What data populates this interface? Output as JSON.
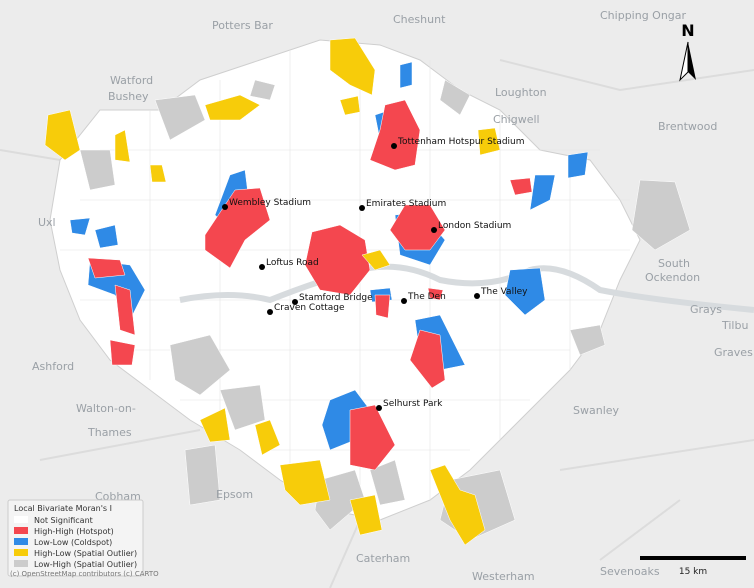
{
  "map": {
    "places": [
      "Potters Bar",
      "Cheshunt",
      "Chipping Ongar",
      "Watford",
      "Bushey",
      "Loughton",
      "Chigwell",
      "Brentwood",
      "Uxl",
      "South",
      "Ockendon",
      "Grays",
      "Tilbu",
      "Graves",
      "Ashford",
      "Walton-on-",
      "Thames",
      "Swanley",
      "Cobham",
      "Epsom",
      "Caterham",
      "Sevenoaks",
      "Westerham"
    ],
    "stadiums": [
      "Tottenham Hotspur Stadium",
      "Wembley Stadium",
      "Emirates Stadium",
      "London Stadium",
      "Loftus Road",
      "Stamford Bridge",
      "Craven Cottage",
      "The Den",
      "The Valley",
      "Selhurst Park"
    ],
    "legend": {
      "title": "Local Bivariate Moran's I",
      "items": [
        {
          "label": "Not Significant",
          "color": "#ffffff"
        },
        {
          "label": "High-High (Hotspot)",
          "color": "#f4474f"
        },
        {
          "label": "Low-Low (Coldspot)",
          "color": "#2f8ae6"
        },
        {
          "label": "High-Low (Spatial Outlier)",
          "color": "#f7cc0a"
        },
        {
          "label": "Low-High (Spatial Outlier)",
          "color": "#cccccc"
        }
      ]
    },
    "north": "N",
    "scale": "15 km",
    "attribution": "(c) OpenStreetMap contributors (c) CARTO"
  }
}
